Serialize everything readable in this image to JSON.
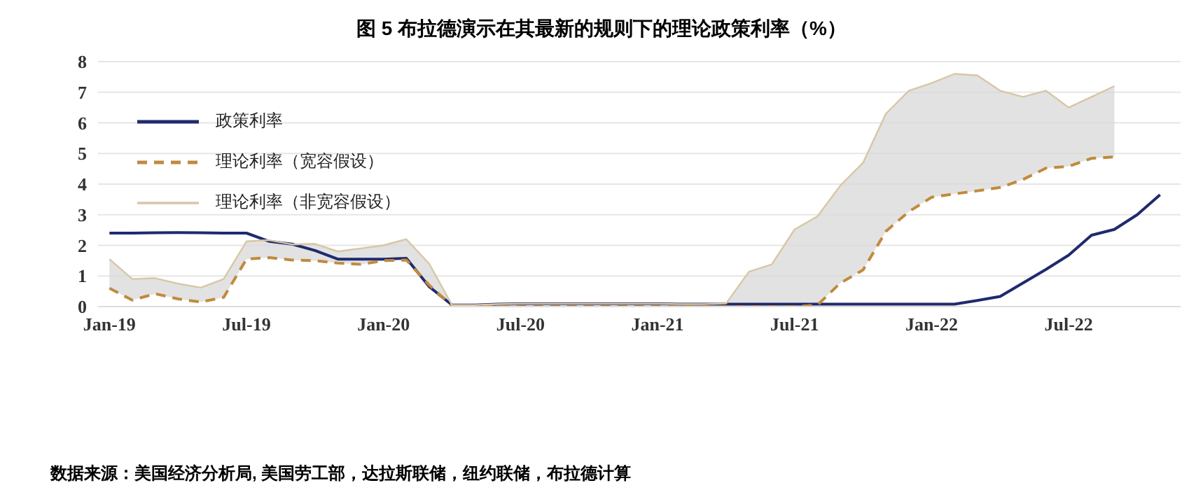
{
  "chart_data": {
    "type": "line",
    "title": "图 5  布拉德演示在其最新的规则下的理论政策利率（%）",
    "annotations": [
      "数据来源：美国经济分析局, 美国劳工部，达拉斯联储，纽约联储，布拉德计算"
    ],
    "x": [
      "2019-01",
      "2019-02",
      "2019-03",
      "2019-04",
      "2019-05",
      "2019-06",
      "2019-07",
      "2019-08",
      "2019-09",
      "2019-10",
      "2019-11",
      "2019-12",
      "2020-01",
      "2020-02",
      "2020-03",
      "2020-04",
      "2020-05",
      "2020-06",
      "2020-07",
      "2020-08",
      "2020-09",
      "2020-10",
      "2020-11",
      "2020-12",
      "2021-01",
      "2021-02",
      "2021-03",
      "2021-04",
      "2021-05",
      "2021-06",
      "2021-07",
      "2021-08",
      "2021-09",
      "2021-10",
      "2021-11",
      "2021-12",
      "2022-01",
      "2022-02",
      "2022-03",
      "2022-04",
      "2022-05",
      "2022-06",
      "2022-07",
      "2022-08",
      "2022-09",
      "2022-10",
      "2022-11"
    ],
    "series": [
      {
        "name": "政策利率",
        "color": "#1f2a6e",
        "line_style": "solid",
        "values": [
          2.4,
          2.4,
          2.41,
          2.42,
          2.41,
          2.4,
          2.4,
          2.13,
          2.04,
          1.83,
          1.55,
          1.55,
          1.55,
          1.58,
          0.65,
          0.05,
          0.05,
          0.08,
          0.09,
          0.09,
          0.09,
          0.09,
          0.09,
          0.09,
          0.09,
          0.08,
          0.08,
          0.08,
          0.08,
          0.08,
          0.08,
          0.08,
          0.08,
          0.08,
          0.08,
          0.08,
          0.08,
          0.08,
          0.2,
          0.33,
          0.77,
          1.21,
          1.68,
          2.33,
          2.52,
          3.0,
          3.65
        ]
      },
      {
        "name": "理论利率（宽容假设）",
        "color": "#c08a3e",
        "line_style": "dashed",
        "values": [
          0.6,
          0.21,
          0.42,
          0.25,
          0.15,
          0.3,
          1.55,
          1.6,
          1.52,
          1.5,
          1.42,
          1.38,
          1.5,
          1.52,
          0.7,
          0.02,
          0.0,
          0.0,
          0.0,
          0.0,
          0.0,
          0.0,
          0.0,
          0.0,
          0.0,
          0.0,
          0.0,
          0.0,
          0.0,
          0.0,
          0.0,
          0.05,
          0.77,
          1.2,
          2.46,
          3.1,
          3.57,
          3.68,
          3.78,
          3.89,
          4.15,
          4.52,
          4.58,
          4.84,
          4.89,
          null,
          null
        ]
      },
      {
        "name": "理论利率（非宽容假设）",
        "color": "#d9c6a5",
        "line_style": "solid",
        "values": [
          1.55,
          0.9,
          0.93,
          0.75,
          0.62,
          0.9,
          2.13,
          2.17,
          2.03,
          2.05,
          1.8,
          1.9,
          2.0,
          2.2,
          1.4,
          0.05,
          0.05,
          0.08,
          0.09,
          0.09,
          0.09,
          0.09,
          0.09,
          0.09,
          0.09,
          0.08,
          0.08,
          0.1,
          1.14,
          1.38,
          2.52,
          2.95,
          3.95,
          4.7,
          6.3,
          7.05,
          7.3,
          7.6,
          7.55,
          7.05,
          6.85,
          7.05,
          6.5,
          6.85,
          7.2,
          null,
          null
        ],
        "lower": [
          0.6,
          0.21,
          0.42,
          0.25,
          0.15,
          0.3,
          1.55,
          1.6,
          1.52,
          1.5,
          1.42,
          1.38,
          1.5,
          1.52,
          0.7,
          0.02,
          0.0,
          0.0,
          0.0,
          0.0,
          0.0,
          0.0,
          0.0,
          0.0,
          0.0,
          0.0,
          0.0,
          0.0,
          0.0,
          0.0,
          0.0,
          0.05,
          0.77,
          1.2,
          2.46,
          3.1,
          3.57,
          3.68,
          3.78,
          3.89,
          4.15,
          4.52,
          4.58,
          4.84,
          4.89,
          null,
          null
        ],
        "upper": [
          1.55,
          0.9,
          0.93,
          0.75,
          0.62,
          0.9,
          2.13,
          2.17,
          2.03,
          2.05,
          1.8,
          1.9,
          2.0,
          2.2,
          1.4,
          0.05,
          0.05,
          0.08,
          0.09,
          0.09,
          0.09,
          0.09,
          0.09,
          0.09,
          0.09,
          0.08,
          0.08,
          0.1,
          1.14,
          1.38,
          2.52,
          2.95,
          3.95,
          4.7,
          6.3,
          7.05,
          7.3,
          7.6,
          7.55,
          7.05,
          6.85,
          7.05,
          6.5,
          6.85,
          7.2,
          null,
          null
        ]
      }
    ],
    "xlim": [
      "2018-12-16",
      "2022-11-28"
    ],
    "xticks": [
      {
        "value": "2019-01",
        "label": "Jan-19"
      },
      {
        "value": "2019-07",
        "label": "Jul-19"
      },
      {
        "value": "2020-01",
        "label": "Jan-20"
      },
      {
        "value": "2020-07",
        "label": "Jul-20"
      },
      {
        "value": "2021-01",
        "label": "Jan-21"
      },
      {
        "value": "2021-07",
        "label": "Jul-21"
      },
      {
        "value": "2022-01",
        "label": "Jan-22"
      },
      {
        "value": "2022-07",
        "label": "Jul-22"
      }
    ],
    "ylim": [
      0,
      8
    ],
    "yticks": [
      0,
      1,
      2,
      3,
      4,
      5,
      6,
      7,
      8
    ],
    "grid": "y",
    "legend": "top left",
    "marker": "none"
  }
}
